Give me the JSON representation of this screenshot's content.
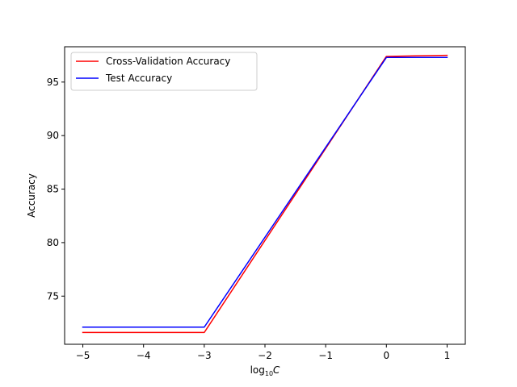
{
  "chart_data": {
    "type": "line",
    "title": "",
    "xlabel_base": "log",
    "xlabel_sub": "10",
    "xlabel_var": "C",
    "ylabel": "Accuracy",
    "xlim": [
      -5.3,
      1.3
    ],
    "ylim": [
      70.5,
      98.3
    ],
    "xticks": [
      -5,
      -4,
      -3,
      -2,
      -1,
      0,
      1
    ],
    "xtick_labels": [
      "−5",
      "−4",
      "−3",
      "−2",
      "−1",
      "0",
      "1"
    ],
    "yticks": [
      75,
      80,
      85,
      90,
      95
    ],
    "ytick_labels": [
      "75",
      "80",
      "85",
      "90",
      "95"
    ],
    "grid": false,
    "legend_position": "top-left",
    "series": [
      {
        "name": "Cross-Validation Accuracy",
        "color": "#ff0000",
        "x": [
          -5,
          -3,
          0,
          1
        ],
        "y": [
          71.6,
          71.6,
          97.4,
          97.5
        ]
      },
      {
        "name": "Test Accuracy",
        "color": "#0000ff",
        "x": [
          -5,
          -3,
          0,
          1
        ],
        "y": [
          72.1,
          72.1,
          97.3,
          97.3
        ]
      }
    ]
  }
}
